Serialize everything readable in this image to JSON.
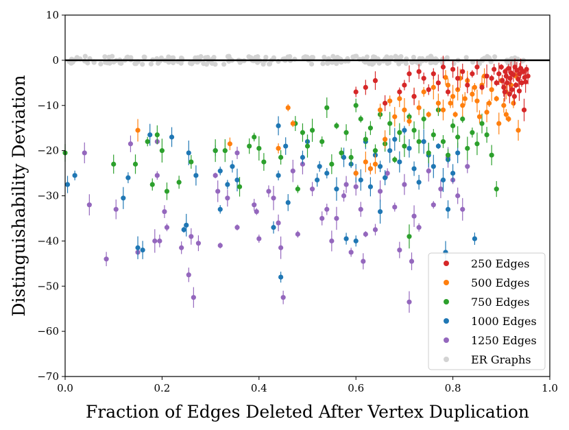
{
  "chart_data": {
    "type": "scatter",
    "title": "",
    "xlabel": "Fraction of Edges Deleted After Vertex Duplication",
    "ylabel": "Distinguishability Deviation",
    "xlim": [
      0.0,
      1.0
    ],
    "ylim": [
      -70,
      10
    ],
    "x_ticks": [
      0.0,
      0.2,
      0.4,
      0.6,
      0.8,
      1.0
    ],
    "x_tick_labels": [
      "0.0",
      "0.2",
      "0.4",
      "0.6",
      "0.8",
      "1.0"
    ],
    "y_ticks": [
      10,
      0,
      -10,
      -20,
      -30,
      -40,
      -50,
      -60,
      -70
    ],
    "y_tick_labels": [
      "10",
      "0",
      "−10",
      "−20",
      "−30",
      "−40",
      "−50",
      "−60",
      "−70"
    ],
    "reference_line": {
      "y": 0,
      "color": "#000000"
    },
    "legend_position": "lower-right",
    "series": [
      {
        "name": "250 Edges",
        "color": "#d62728",
        "points": [
          [
            0.6,
            -7
          ],
          [
            0.62,
            -6
          ],
          [
            0.64,
            -4.5
          ],
          [
            0.66,
            -9.5
          ],
          [
            0.69,
            -7
          ],
          [
            0.7,
            -5.5
          ],
          [
            0.71,
            -3
          ],
          [
            0.72,
            -8
          ],
          [
            0.73,
            -2.5
          ],
          [
            0.74,
            -4
          ],
          [
            0.75,
            -6.5
          ],
          [
            0.76,
            -3
          ],
          [
            0.77,
            -5
          ],
          [
            0.78,
            -1.5
          ],
          [
            0.79,
            -7
          ],
          [
            0.8,
            -2
          ],
          [
            0.81,
            -4
          ],
          [
            0.82,
            -2.5
          ],
          [
            0.83,
            -5.5
          ],
          [
            0.84,
            -3
          ],
          [
            0.85,
            -1.5
          ],
          [
            0.86,
            -6
          ],
          [
            0.87,
            -3.5
          ],
          [
            0.88,
            -4
          ],
          [
            0.885,
            -2
          ],
          [
            0.89,
            -5
          ],
          [
            0.895,
            -3
          ],
          [
            0.9,
            -1.5
          ],
          [
            0.902,
            -4.5
          ],
          [
            0.905,
            -6
          ],
          [
            0.908,
            -2.5
          ],
          [
            0.91,
            -3.5
          ],
          [
            0.912,
            -5
          ],
          [
            0.915,
            -1.8
          ],
          [
            0.918,
            -4
          ],
          [
            0.92,
            -2.8
          ],
          [
            0.922,
            -6.5
          ],
          [
            0.925,
            -3.2
          ],
          [
            0.928,
            -1.5
          ],
          [
            0.93,
            -5.5
          ],
          [
            0.932,
            -2.2
          ],
          [
            0.935,
            -4.2
          ],
          [
            0.938,
            -3
          ],
          [
            0.94,
            -1.8
          ],
          [
            0.942,
            -5
          ],
          [
            0.945,
            -2.5
          ],
          [
            0.948,
            -3.8
          ],
          [
            0.95,
            -4.8
          ],
          [
            0.952,
            -2
          ],
          [
            0.955,
            -3.5
          ],
          [
            0.907,
            -7
          ],
          [
            0.917,
            -7.5
          ],
          [
            0.927,
            -8
          ],
          [
            0.937,
            -6.8
          ],
          [
            0.947,
            -11
          ]
        ]
      },
      {
        "name": "500 Edges",
        "color": "#ff7f0e",
        "points": [
          [
            0.15,
            -15.5
          ],
          [
            0.34,
            -18.5
          ],
          [
            0.44,
            -19.5
          ],
          [
            0.46,
            -10.5
          ],
          [
            0.47,
            -14
          ],
          [
            0.6,
            -25
          ],
          [
            0.62,
            -22.5
          ],
          [
            0.63,
            -24
          ],
          [
            0.64,
            -23
          ],
          [
            0.65,
            -11
          ],
          [
            0.66,
            -17.5
          ],
          [
            0.67,
            -9
          ],
          [
            0.68,
            -12.5
          ],
          [
            0.69,
            -8.5
          ],
          [
            0.7,
            -11
          ],
          [
            0.71,
            -13.5
          ],
          [
            0.72,
            -8
          ],
          [
            0.73,
            -10.5
          ],
          [
            0.74,
            -7
          ],
          [
            0.75,
            -12
          ],
          [
            0.76,
            -6
          ],
          [
            0.77,
            -9.5
          ],
          [
            0.78,
            -11
          ],
          [
            0.79,
            -5.5
          ],
          [
            0.8,
            -8
          ],
          [
            0.81,
            -6.5
          ],
          [
            0.82,
            -10
          ],
          [
            0.83,
            -4.5
          ],
          [
            0.84,
            -7.5
          ],
          [
            0.85,
            -9
          ],
          [
            0.86,
            -5.5
          ],
          [
            0.87,
            -11.5
          ],
          [
            0.88,
            -6.5
          ],
          [
            0.89,
            -8.5
          ],
          [
            0.9,
            -4.5
          ],
          [
            0.905,
            -10
          ],
          [
            0.91,
            -7
          ],
          [
            0.915,
            -13
          ],
          [
            0.92,
            -5.5
          ],
          [
            0.925,
            -9.5
          ],
          [
            0.93,
            -3.5
          ],
          [
            0.935,
            -15.5
          ],
          [
            0.91,
            -12
          ],
          [
            0.895,
            -14
          ],
          [
            0.875,
            -9.5
          ],
          [
            0.865,
            -3.5
          ],
          [
            0.855,
            -12.5
          ],
          [
            0.845,
            -6
          ],
          [
            0.825,
            -8.5
          ],
          [
            0.815,
            -4
          ],
          [
            0.805,
            -12
          ],
          [
            0.795,
            -9.5
          ],
          [
            0.785,
            -3.8
          ]
        ]
      },
      {
        "name": "750 Edges",
        "color": "#2ca02c",
        "points": [
          [
            0.0,
            -20.5
          ],
          [
            0.1,
            -23
          ],
          [
            0.145,
            -23
          ],
          [
            0.17,
            -18
          ],
          [
            0.18,
            -27.5
          ],
          [
            0.19,
            -16.5
          ],
          [
            0.2,
            -20
          ],
          [
            0.21,
            -29
          ],
          [
            0.235,
            -27
          ],
          [
            0.26,
            -22.5
          ],
          [
            0.31,
            -20
          ],
          [
            0.33,
            -20
          ],
          [
            0.36,
            -28
          ],
          [
            0.38,
            -19
          ],
          [
            0.39,
            -17
          ],
          [
            0.4,
            -19.5
          ],
          [
            0.41,
            -22.5
          ],
          [
            0.445,
            -21.5
          ],
          [
            0.475,
            -14
          ],
          [
            0.48,
            -28.5
          ],
          [
            0.49,
            -16
          ],
          [
            0.5,
            -19
          ],
          [
            0.51,
            -15.5
          ],
          [
            0.53,
            -18
          ],
          [
            0.54,
            -10.5
          ],
          [
            0.55,
            -23
          ],
          [
            0.56,
            -14.5
          ],
          [
            0.57,
            -20.5
          ],
          [
            0.58,
            -16
          ],
          [
            0.59,
            -21.5
          ],
          [
            0.6,
            -10
          ],
          [
            0.61,
            -13
          ],
          [
            0.62,
            -17.5
          ],
          [
            0.63,
            -15
          ],
          [
            0.64,
            -20
          ],
          [
            0.65,
            -12
          ],
          [
            0.66,
            -18.5
          ],
          [
            0.67,
            -14
          ],
          [
            0.68,
            -22
          ],
          [
            0.69,
            -16
          ],
          [
            0.7,
            -19
          ],
          [
            0.71,
            -12.5
          ],
          [
            0.72,
            -15.5
          ],
          [
            0.73,
            -18
          ],
          [
            0.74,
            -13
          ],
          [
            0.75,
            -20.5
          ],
          [
            0.76,
            -16.5
          ],
          [
            0.77,
            -11
          ],
          [
            0.78,
            -18
          ],
          [
            0.79,
            -21
          ],
          [
            0.8,
            -14.5
          ],
          [
            0.81,
            -17
          ],
          [
            0.82,
            -13
          ],
          [
            0.83,
            -19.5
          ],
          [
            0.84,
            -16
          ],
          [
            0.85,
            -18.5
          ],
          [
            0.86,
            -14
          ],
          [
            0.87,
            -16.5
          ],
          [
            0.88,
            -21
          ],
          [
            0.89,
            -28.5
          ],
          [
            0.71,
            -39
          ]
        ]
      },
      {
        "name": "1000 Edges",
        "color": "#1f77b4",
        "points": [
          [
            0.005,
            -27.5
          ],
          [
            0.02,
            -25.5
          ],
          [
            0.12,
            -30.5
          ],
          [
            0.13,
            -26
          ],
          [
            0.15,
            -41.5
          ],
          [
            0.16,
            -42
          ],
          [
            0.175,
            -16.5
          ],
          [
            0.22,
            -17
          ],
          [
            0.245,
            -37.5
          ],
          [
            0.25,
            -36.5
          ],
          [
            0.255,
            -20.5
          ],
          [
            0.27,
            -25.5
          ],
          [
            0.31,
            -20
          ],
          [
            0.32,
            -24.5
          ],
          [
            0.32,
            -33
          ],
          [
            0.335,
            -27.5
          ],
          [
            0.345,
            -23.5
          ],
          [
            0.355,
            -26.5
          ],
          [
            0.43,
            -37
          ],
          [
            0.44,
            -14.5
          ],
          [
            0.44,
            -25.5
          ],
          [
            0.445,
            -48
          ],
          [
            0.455,
            -19
          ],
          [
            0.46,
            -31.5
          ],
          [
            0.49,
            -21.5
          ],
          [
            0.5,
            -18
          ],
          [
            0.52,
            -26.5
          ],
          [
            0.525,
            -23.5
          ],
          [
            0.54,
            -25
          ],
          [
            0.56,
            -28.5
          ],
          [
            0.575,
            -21.5
          ],
          [
            0.58,
            -39.5
          ],
          [
            0.59,
            -23
          ],
          [
            0.6,
            -25
          ],
          [
            0.61,
            -26.5
          ],
          [
            0.62,
            -18
          ],
          [
            0.63,
            -28
          ],
          [
            0.64,
            -21
          ],
          [
            0.65,
            -23.5
          ],
          [
            0.66,
            -26
          ],
          [
            0.67,
            -20
          ],
          [
            0.68,
            -17.5
          ],
          [
            0.69,
            -22.5
          ],
          [
            0.7,
            -15.5
          ],
          [
            0.71,
            -19.5
          ],
          [
            0.72,
            -24
          ],
          [
            0.73,
            -27
          ],
          [
            0.74,
            -18
          ],
          [
            0.75,
            -21
          ],
          [
            0.76,
            -23.5
          ],
          [
            0.77,
            -19
          ],
          [
            0.78,
            -26.5
          ],
          [
            0.79,
            -22
          ],
          [
            0.8,
            -25
          ],
          [
            0.81,
            -20.5
          ],
          [
            0.785,
            -42.5
          ],
          [
            0.79,
            -33
          ],
          [
            0.845,
            -39.5
          ],
          [
            0.6,
            -40
          ],
          [
            0.65,
            -33.5
          ]
        ]
      },
      {
        "name": "1250 Edges",
        "color": "#9467bd",
        "points": [
          [
            0.04,
            -20.5
          ],
          [
            0.05,
            -32
          ],
          [
            0.085,
            -44
          ],
          [
            0.105,
            -33
          ],
          [
            0.135,
            -18.5
          ],
          [
            0.15,
            -42.5
          ],
          [
            0.185,
            -40
          ],
          [
            0.19,
            -25.5
          ],
          [
            0.19,
            -18
          ],
          [
            0.195,
            -40
          ],
          [
            0.205,
            -33.5
          ],
          [
            0.21,
            -37
          ],
          [
            0.24,
            -41.5
          ],
          [
            0.255,
            -47.5
          ],
          [
            0.26,
            -39
          ],
          [
            0.265,
            -52.5
          ],
          [
            0.275,
            -40.5
          ],
          [
            0.31,
            -25.5
          ],
          [
            0.315,
            -29
          ],
          [
            0.32,
            -41
          ],
          [
            0.335,
            -30.5
          ],
          [
            0.355,
            -37
          ],
          [
            0.355,
            -20.5
          ],
          [
            0.39,
            -32
          ],
          [
            0.395,
            -33.5
          ],
          [
            0.4,
            -39.5
          ],
          [
            0.42,
            -29
          ],
          [
            0.43,
            -30.5
          ],
          [
            0.44,
            -36
          ],
          [
            0.445,
            -41.5
          ],
          [
            0.45,
            -52.5
          ],
          [
            0.47,
            -24.5
          ],
          [
            0.48,
            -38.5
          ],
          [
            0.49,
            -23
          ],
          [
            0.51,
            -28.5
          ],
          [
            0.53,
            -35
          ],
          [
            0.54,
            -33
          ],
          [
            0.55,
            -40
          ],
          [
            0.56,
            -35
          ],
          [
            0.575,
            -30
          ],
          [
            0.58,
            -27.5
          ],
          [
            0.59,
            -42.5
          ],
          [
            0.6,
            -28
          ],
          [
            0.61,
            -33
          ],
          [
            0.615,
            -44.5
          ],
          [
            0.62,
            -38.5
          ],
          [
            0.63,
            -24
          ],
          [
            0.64,
            -37.5
          ],
          [
            0.65,
            -29
          ],
          [
            0.665,
            -25
          ],
          [
            0.68,
            -32.5
          ],
          [
            0.69,
            -42
          ],
          [
            0.7,
            -27.5
          ],
          [
            0.71,
            -53.5
          ],
          [
            0.715,
            -44.5
          ],
          [
            0.72,
            -34.5
          ],
          [
            0.73,
            -37
          ],
          [
            0.75,
            -24.5
          ],
          [
            0.76,
            -32
          ],
          [
            0.775,
            -28.5
          ],
          [
            0.79,
            -21.5
          ],
          [
            0.8,
            -26.5
          ],
          [
            0.81,
            -30
          ],
          [
            0.83,
            -23.5
          ],
          [
            0.82,
            -33
          ]
        ]
      },
      {
        "name": "ER Graphs",
        "color": "#d3d3d3",
        "x_range": [
          0.0,
          0.95
        ],
        "y_value": 0
      }
    ]
  }
}
